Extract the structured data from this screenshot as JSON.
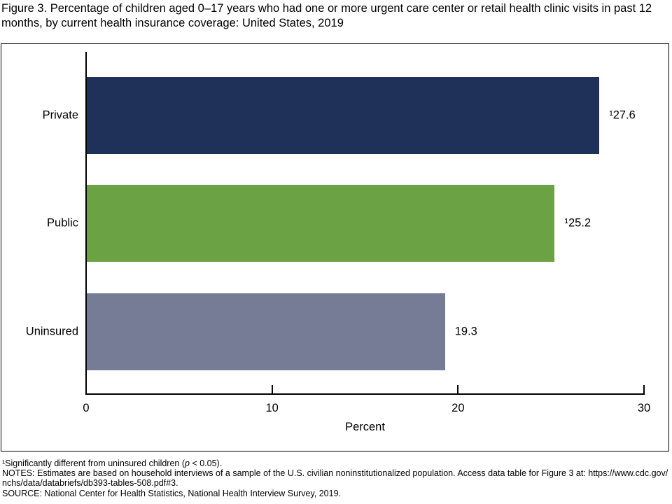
{
  "title": "Figure 3. Percentage of children aged 0–17 years who had one or more urgent care center or retail health clinic visits in past 12 months, by current health insurance coverage: United States, 2019",
  "chart_data": {
    "type": "bar",
    "orientation": "horizontal",
    "categories": [
      "Private",
      "Public",
      "Uninsured"
    ],
    "values": [
      27.6,
      25.2,
      19.3
    ],
    "value_labels": [
      "¹27.6",
      "¹25.2",
      "19.3"
    ],
    "bar_colors": [
      "#1F3158",
      "#6AA244",
      "#777C96"
    ],
    "xlabel": "Percent",
    "xlim": [
      0,
      30
    ],
    "xticks": [
      0,
      10,
      20,
      30
    ],
    "grid": false,
    "legend": "none",
    "value_label_position": "outside-end",
    "axis_color": "#000000",
    "frame_border_color": "#000000",
    "background_color": "#FFFFFF"
  },
  "footnotes": [
    "¹Significantly different from uninsured children (p < 0.05).",
    "NOTES: Estimates are based on household interviews of a sample of the U.S. civilian noninstitutionalized population. Access data table for Figure 3 at: https://www.cdc.gov/nchs/data/databriefs/db393-tables-508.pdf#3.",
    "SOURCE: National Center for Health Statistics, National Health Interview Survey, 2019."
  ]
}
